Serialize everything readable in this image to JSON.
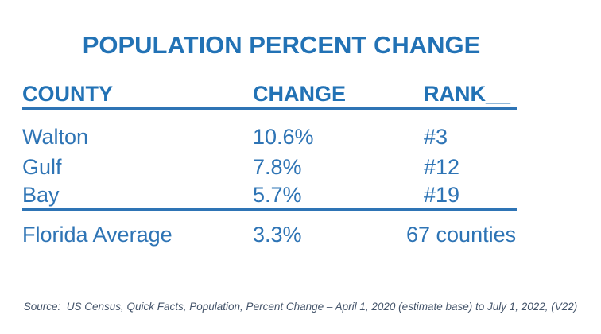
{
  "title": "POPULATION PERCENT CHANGE",
  "table": {
    "headers": {
      "county": "COUNTY",
      "change": "CHANGE",
      "rank": "RANK",
      "rank_trailing": "__"
    },
    "rows": [
      {
        "county": "Walton",
        "change": "10.6%",
        "rank": "#3"
      },
      {
        "county": "Gulf",
        "change": "7.8%",
        "rank": "#12"
      },
      {
        "county": "Bay",
        "change": "5.7%",
        "rank": "#19"
      }
    ],
    "summary_row": {
      "county": "Florida Average",
      "change": "3.3%",
      "rank": "67 counties"
    }
  },
  "source_note": "Source:  US Census, Quick Facts, Population, Percent Change – April 1, 2020 (estimate base) to July 1, 2022, (V22)",
  "colors": {
    "accent_blue": "#2272B5",
    "body_blue": "#2E74B5",
    "source_gray": "#44546A"
  }
}
